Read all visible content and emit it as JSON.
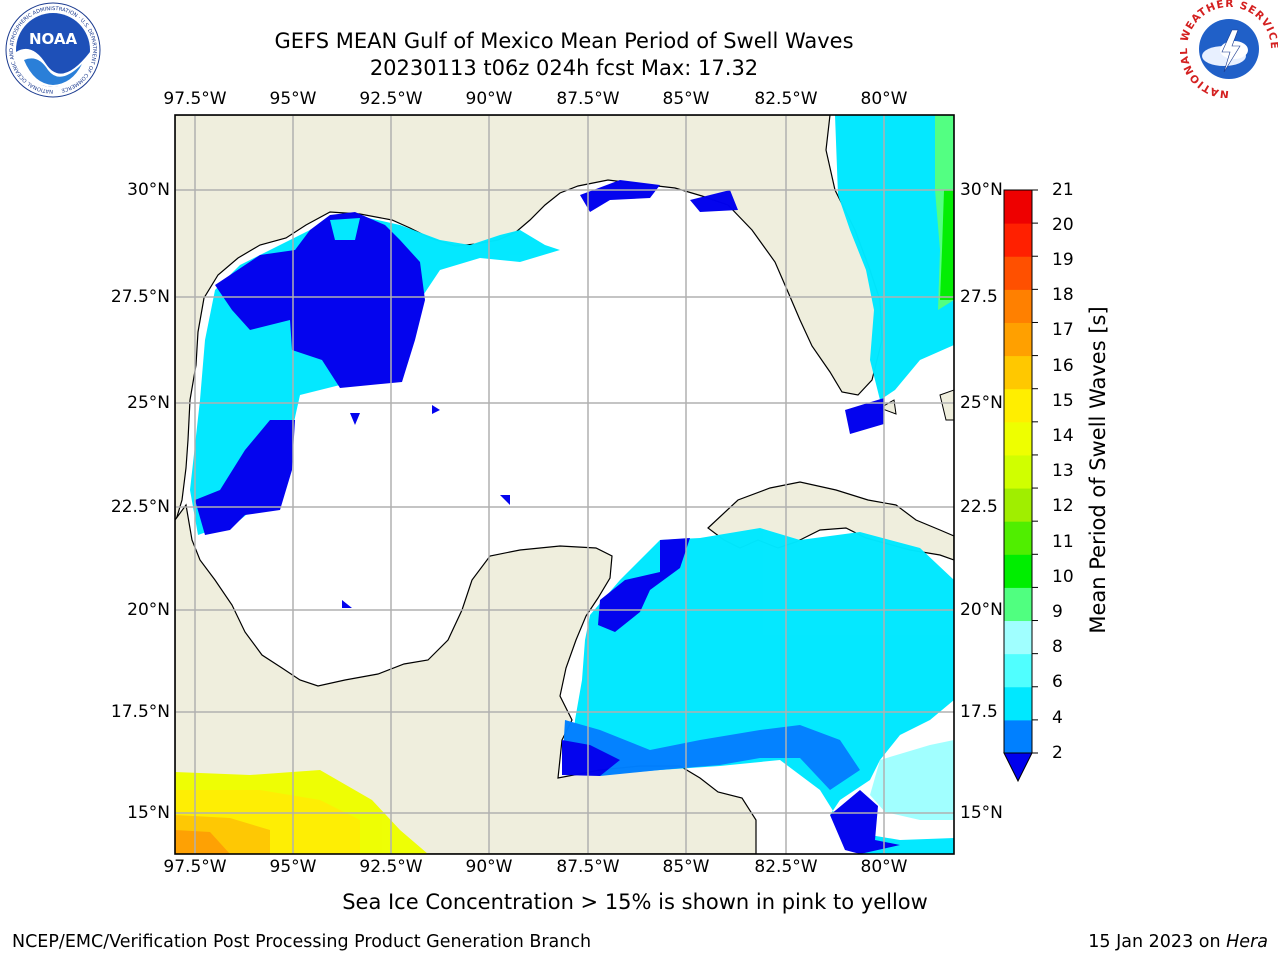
{
  "title": {
    "line1": "GEFS MEAN Gulf of Mexico Mean Period of Swell Waves",
    "line2": "20230113 t06z 024h fcst   Max: 17.32"
  },
  "map": {
    "lon_labels": [
      "97.5°W",
      "95°W",
      "92.5°W",
      "90°W",
      "87.5°W",
      "85°W",
      "82.5°W",
      "80°W"
    ],
    "lat_labels_left": [
      "30°N",
      "27.5°N",
      "25°N",
      "22.5°N",
      "20°N",
      "17.5°N",
      "15°N"
    ],
    "lat_labels_right": [
      "30°N",
      "27.5",
      "25°N",
      "22.5",
      "20°N",
      "17.5",
      "15°N"
    ],
    "land_color": "#efeedd",
    "ocean_color": "#ffffff"
  },
  "colorbar": {
    "label": "Mean Period of Swell Waves [s]",
    "ticks": [
      "2",
      "4",
      "6",
      "8",
      "9",
      "10",
      "11",
      "12",
      "13",
      "14",
      "15",
      "16",
      "17",
      "18",
      "19",
      "20",
      "21"
    ],
    "colors": [
      "#0000ee",
      "#0080ff",
      "#00e8ff",
      "#50ffff",
      "#a0ffff",
      "#50ff80",
      "#00ee00",
      "#50ee00",
      "#a0ee00",
      "#d0ff00",
      "#eeff00",
      "#ffee00",
      "#ffc800",
      "#ffa000",
      "#ff8000",
      "#ff5000",
      "#ff2000",
      "#ee0000"
    ]
  },
  "notes": {
    "ice": "Sea Ice Concentration > 15% is shown in pink to yellow"
  },
  "footer": {
    "left": "NCEP/EMC/Verification Post Processing Product Generation Branch",
    "date": "15 Jan 2023 on ",
    "host": "Hera"
  },
  "logos": {
    "noaa": "NOAA",
    "noaa_ring": "NATIONAL OCEANIC AND ATMOSPHERIC ADMINISTRATION · U.S. DEPARTMENT OF COMMERCE",
    "nws_ring": "NATIONAL WEATHER SERVICE"
  }
}
